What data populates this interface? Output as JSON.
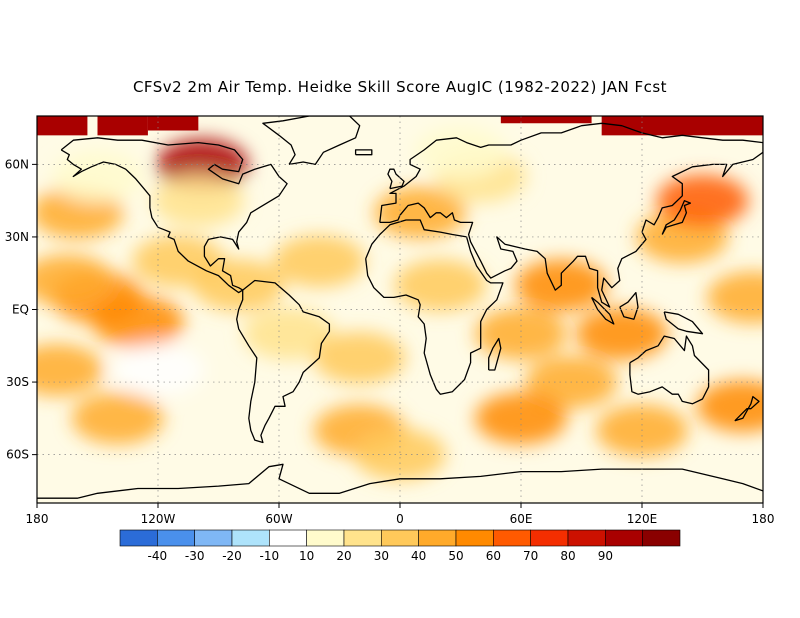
{
  "title": "CFSv2 2m Air Temp. Heidke Skill Score AugIC (1982-2022) JAN Fcst",
  "map": {
    "projection": "equirectangular",
    "lon_range": [
      -180,
      180
    ],
    "lat_range": [
      -80,
      80
    ],
    "lat_ticks": [
      {
        "lat": 60,
        "label": "60N"
      },
      {
        "lat": 30,
        "label": "30N"
      },
      {
        "lat": 0,
        "label": "EQ"
      },
      {
        "lat": -30,
        "label": "30S"
      },
      {
        "lat": -60,
        "label": "60S"
      }
    ],
    "lon_ticks": [
      {
        "lon": -180,
        "label": "180"
      },
      {
        "lon": -120,
        "label": "120W"
      },
      {
        "lon": -60,
        "label": "60W"
      },
      {
        "lon": 0,
        "label": "0"
      },
      {
        "lon": 60,
        "label": "60E"
      },
      {
        "lon": 120,
        "label": "120E"
      },
      {
        "lon": 180,
        "label": "180"
      }
    ],
    "grid": true,
    "coastline_color": "#000000"
  },
  "colorbar": {
    "colors": [
      "#2b6cd8",
      "#4a90ec",
      "#7fb7f5",
      "#aee3fb",
      "#ffffff",
      "#fffbcc",
      "#ffe38c",
      "#ffc95a",
      "#ffaa2a",
      "#ff8a00",
      "#ff5a00",
      "#f42e00",
      "#cc1100",
      "#a90000",
      "#8a0000"
    ],
    "tick_labels": [
      "-40",
      "-30",
      "-20",
      "-10",
      "10",
      "20",
      "30",
      "40",
      "50",
      "60",
      "70",
      "80",
      "90"
    ]
  },
  "field_regions": [
    {
      "lon": -150,
      "lat": 5,
      "value": 45
    },
    {
      "lon": -130,
      "lat": -5,
      "value": 40
    },
    {
      "lon": -165,
      "lat": 12,
      "value": 35
    },
    {
      "lon": -110,
      "lat": 20,
      "value": 25
    },
    {
      "lon": -170,
      "lat": -25,
      "value": 30
    },
    {
      "lon": -140,
      "lat": -45,
      "value": 30
    },
    {
      "lon": -160,
      "lat": 40,
      "value": 30
    },
    {
      "lon": -120,
      "lat": -25,
      "value": -15
    },
    {
      "lon": -98,
      "lat": 60,
      "value": 85
    },
    {
      "lon": -100,
      "lat": 45,
      "value": 15
    },
    {
      "lon": -80,
      "lat": 10,
      "value": 20
    },
    {
      "lon": -55,
      "lat": -10,
      "value": 15
    },
    {
      "lon": -40,
      "lat": 20,
      "value": 25
    },
    {
      "lon": -20,
      "lat": -20,
      "value": 25
    },
    {
      "lon": 10,
      "lat": 40,
      "value": 30
    },
    {
      "lon": 20,
      "lat": 10,
      "value": 20
    },
    {
      "lon": 60,
      "lat": -10,
      "value": 35
    },
    {
      "lon": 80,
      "lat": 10,
      "value": 40
    },
    {
      "lon": 85,
      "lat": -30,
      "value": 30
    },
    {
      "lon": 60,
      "lat": -45,
      "value": 40
    },
    {
      "lon": 110,
      "lat": -10,
      "value": 40
    },
    {
      "lon": 140,
      "lat": 30,
      "value": 35
    },
    {
      "lon": 150,
      "lat": 45,
      "value": 50
    },
    {
      "lon": 170,
      "lat": -40,
      "value": 45
    },
    {
      "lon": 175,
      "lat": 5,
      "value": 30
    },
    {
      "lon": 40,
      "lat": 55,
      "value": 15
    },
    {
      "lon": -20,
      "lat": -50,
      "value": 30
    },
    {
      "lon": 120,
      "lat": -50,
      "value": 30
    },
    {
      "lon": 0,
      "lat": -60,
      "value": 20
    },
    {
      "lon": 30,
      "lat": 65,
      "value": -10
    },
    {
      "lon": -150,
      "lat": 55,
      "value": -10
    }
  ],
  "polar_bands": [
    {
      "lon_range": [
        -180,
        -155
      ],
      "lat_range": [
        72,
        80
      ],
      "value": 85
    },
    {
      "lon_range": [
        -150,
        -125
      ],
      "lat_range": [
        72,
        80
      ],
      "value": 85
    },
    {
      "lon_range": [
        -125,
        -100
      ],
      "lat_range": [
        74,
        80
      ],
      "value": 85
    },
    {
      "lon_range": [
        100,
        180
      ],
      "lat_range": [
        72,
        80
      ],
      "value": 85
    },
    {
      "lon_range": [
        50,
        95
      ],
      "lat_range": [
        77,
        80
      ],
      "value": 85
    }
  ]
}
